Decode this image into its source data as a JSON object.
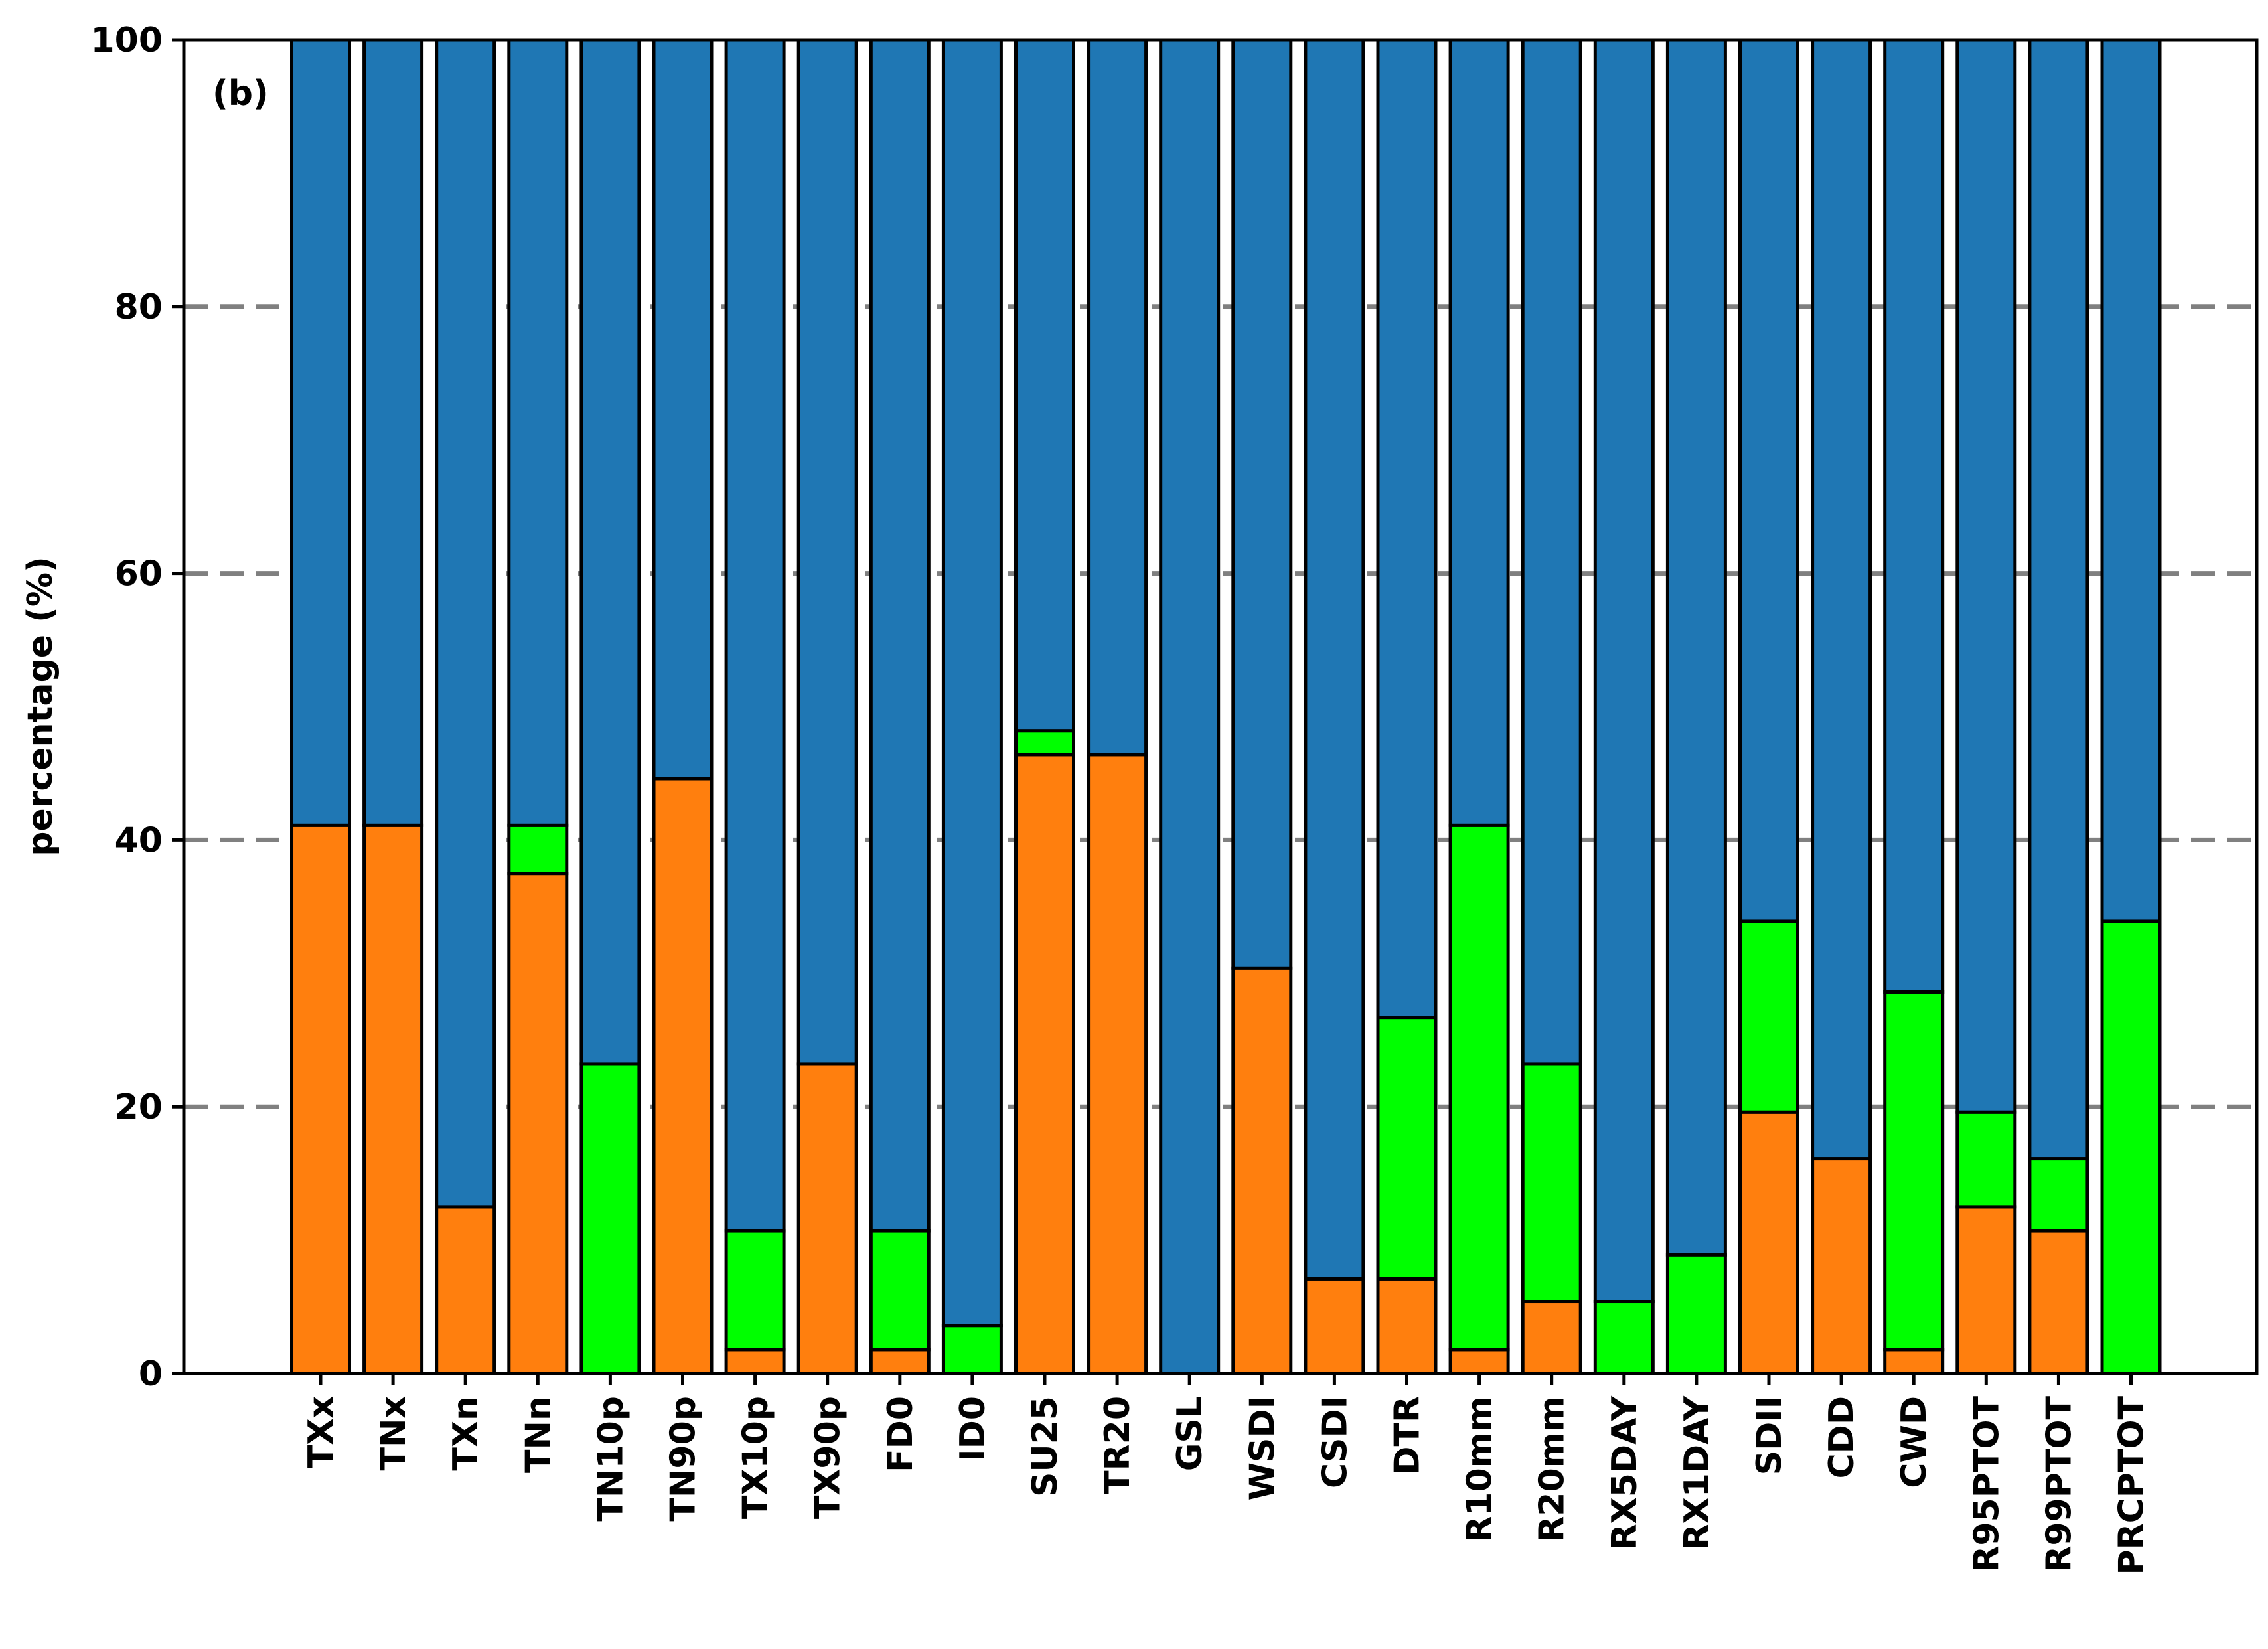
{
  "chart_data": {
    "type": "bar",
    "stacked": true,
    "panel_label": "(b)",
    "ylabel": "percentage (%)",
    "xlabel": "",
    "ylim": [
      0,
      100
    ],
    "yticks": [
      0,
      20,
      40,
      60,
      80,
      100
    ],
    "grid": "horizontal dashed",
    "categories": [
      "TXx",
      "TNx",
      "TXn",
      "TNn",
      "TN10p",
      "TN90p",
      "TX10p",
      "TX90p",
      "FD0",
      "ID0",
      "SU25",
      "TR20",
      "GSL",
      "WSDI",
      "CSDI",
      "DTR",
      "R10mm",
      "R20mm",
      "RX5DAY",
      "RX1DAY",
      "SDII",
      "CDD",
      "CWD",
      "R95PTOT",
      "R99PTOT",
      "PRCPTOT"
    ],
    "series": [
      {
        "color": "#ff7f0e",
        "values": [
          41.1,
          41.1,
          12.5,
          37.5,
          0,
          44.6,
          1.8,
          23.2,
          1.8,
          0,
          46.4,
          46.4,
          0,
          30.4,
          7.1,
          7.1,
          1.8,
          5.4,
          0,
          0,
          19.6,
          16.1,
          1.8,
          12.5,
          10.7,
          0
        ]
      },
      {
        "color": "#00ff00",
        "values": [
          0,
          0,
          0,
          3.6,
          23.2,
          0,
          8.9,
          0,
          8.9,
          3.6,
          1.8,
          0,
          0,
          0,
          0,
          19.6,
          39.3,
          17.8,
          5.4,
          8.9,
          14.3,
          0,
          26.8,
          7.1,
          5.4,
          33.9
        ]
      },
      {
        "color": "#1f77b4",
        "values": [
          58.9,
          58.9,
          87.5,
          58.9,
          76.8,
          55.4,
          89.3,
          76.8,
          89.3,
          96.4,
          51.8,
          53.6,
          100,
          69.6,
          92.9,
          73.3,
          58.9,
          76.8,
          94.6,
          91.1,
          66.1,
          83.9,
          71.4,
          80.4,
          83.9,
          66.1
        ]
      }
    ]
  }
}
